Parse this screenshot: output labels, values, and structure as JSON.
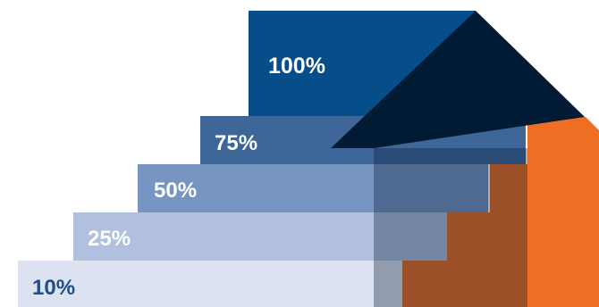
{
  "steps": [
    {
      "label": "10%",
      "value": 10,
      "fill": "#DDE2F0",
      "text_color": "#1F4E86"
    },
    {
      "label": "25%",
      "value": 25,
      "fill": "#B1C0DE",
      "text_color": "#FFFFFF"
    },
    {
      "label": "50%",
      "value": 50,
      "fill": "#7795C2",
      "text_color": "#FFFFFF"
    },
    {
      "label": "75%",
      "value": 75,
      "fill": "#3F6698",
      "text_color": "#FFFFFF"
    },
    {
      "label": "100%",
      "value": 100,
      "fill": "#064E8A",
      "text_color": "#FFFFFF"
    }
  ],
  "colors": {
    "arrow_dark": "#021B35",
    "stairs_orange": "#EE6E23",
    "background": "#FFFFFF"
  }
}
